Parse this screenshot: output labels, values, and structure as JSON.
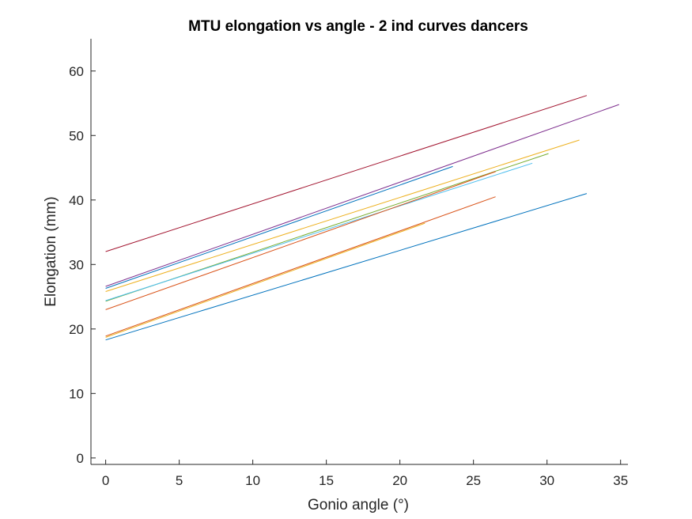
{
  "chart_data": {
    "type": "line",
    "title": "MTU elongation vs angle - 2 ind curves dancers",
    "xlabel": "Gonio angle (°)",
    "ylabel": "Elongation (mm)",
    "xlim": [
      -1,
      35.5
    ],
    "ylim": [
      -1,
      65
    ],
    "xticks": [
      0,
      5,
      10,
      15,
      20,
      25,
      30,
      35
    ],
    "yticks": [
      0,
      10,
      20,
      30,
      40,
      50,
      60
    ],
    "grid": false,
    "box": false,
    "series": [
      {
        "color": "#A2142F",
        "x": [
          0,
          32.7
        ],
        "y": [
          32.0,
          56.2
        ]
      },
      {
        "color": "#7E2F8E",
        "x": [
          0,
          34.9
        ],
        "y": [
          26.6,
          54.8
        ]
      },
      {
        "color": "#0072BD",
        "x": [
          0,
          23.6
        ],
        "y": [
          26.3,
          45.2
        ]
      },
      {
        "color": "#EDB120",
        "x": [
          0,
          32.2
        ],
        "y": [
          25.8,
          49.3
        ]
      },
      {
        "color": "#77AC30",
        "x": [
          0,
          30.1
        ],
        "y": [
          24.3,
          47.2
        ]
      },
      {
        "color": "#4DBEEE",
        "x": [
          0,
          29.0
        ],
        "y": [
          24.4,
          45.7
        ]
      },
      {
        "color": "#D95319",
        "x": [
          0,
          26.5
        ],
        "y": [
          23.0,
          44.4
        ]
      },
      {
        "color": "#D95319",
        "x": [
          0,
          26.5
        ],
        "y": [
          18.9,
          40.5
        ]
      },
      {
        "color": "#EDB120",
        "x": [
          0,
          21.7
        ],
        "y": [
          18.7,
          36.4
        ]
      },
      {
        "color": "#0072BD",
        "x": [
          0,
          32.7
        ],
        "y": [
          18.3,
          41.0
        ]
      }
    ]
  }
}
